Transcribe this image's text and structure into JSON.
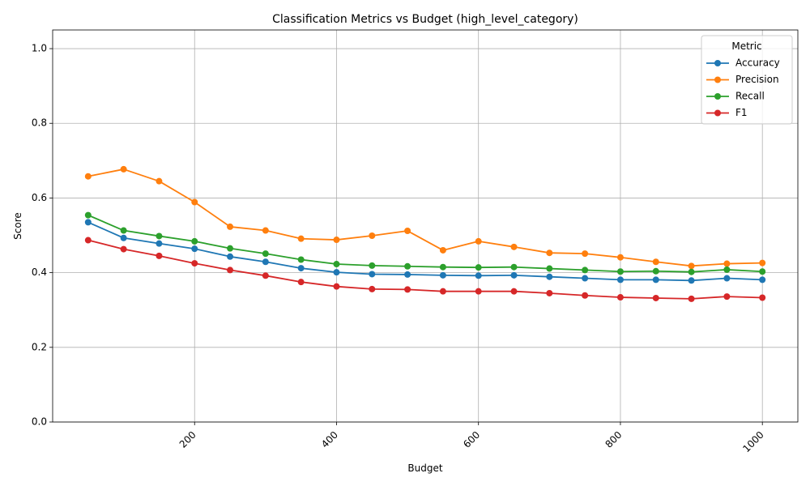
{
  "chart_data": {
    "type": "line",
    "title": "Classification Metrics vs Budget (high_level_category)",
    "xlabel": "Budget",
    "ylabel": "Score",
    "xlim": [
      0,
      1050
    ],
    "ylim": [
      0,
      1.05
    ],
    "xticks": [
      200,
      400,
      600,
      800,
      1000
    ],
    "yticks": [
      0.0,
      0.2,
      0.4,
      0.6,
      0.8,
      1.0
    ],
    "ytick_labels": [
      "0.0",
      "0.2",
      "0.4",
      "0.6",
      "0.8",
      "1.0"
    ],
    "xtick_rotation": -45,
    "grid": true,
    "legend_title": "Metric",
    "legend_position": "top-right",
    "x": [
      50,
      100,
      150,
      200,
      250,
      300,
      350,
      400,
      450,
      500,
      550,
      600,
      650,
      700,
      750,
      800,
      850,
      900,
      950,
      1000
    ],
    "series": [
      {
        "name": "Accuracy",
        "color": "#1f77b4",
        "values": [
          0.535,
          0.493,
          0.478,
          0.464,
          0.443,
          0.429,
          0.412,
          0.401,
          0.396,
          0.395,
          0.393,
          0.392,
          0.393,
          0.389,
          0.385,
          0.381,
          0.381,
          0.379,
          0.385,
          0.381
        ]
      },
      {
        "name": "Precision",
        "color": "#ff7f0e",
        "values": [
          0.658,
          0.677,
          0.645,
          0.589,
          0.523,
          0.513,
          0.491,
          0.488,
          0.499,
          0.512,
          0.46,
          0.484,
          0.469,
          0.453,
          0.451,
          0.441,
          0.429,
          0.418,
          0.424,
          0.426
        ]
      },
      {
        "name": "Recall",
        "color": "#2ca02c",
        "values": [
          0.554,
          0.513,
          0.498,
          0.484,
          0.465,
          0.451,
          0.435,
          0.423,
          0.419,
          0.417,
          0.415,
          0.414,
          0.415,
          0.411,
          0.407,
          0.403,
          0.404,
          0.402,
          0.408,
          0.403
        ]
      },
      {
        "name": "F1",
        "color": "#d62728",
        "values": [
          0.487,
          0.463,
          0.445,
          0.425,
          0.407,
          0.392,
          0.375,
          0.363,
          0.356,
          0.355,
          0.35,
          0.35,
          0.35,
          0.345,
          0.339,
          0.334,
          0.332,
          0.33,
          0.336,
          0.333
        ]
      }
    ]
  }
}
